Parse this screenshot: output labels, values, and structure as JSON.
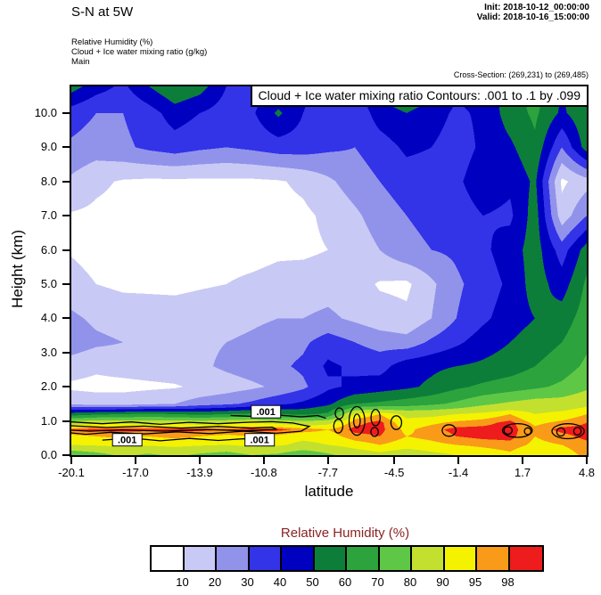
{
  "header": {
    "title": "S-N at 5W",
    "init_line": "Init: 2018-10-12_00:00:00",
    "valid_line": "Valid: 2018-10-16_15:00:00",
    "sub_lines": [
      "Relative Humidity  (%)",
      "Cloud + Ice water mixing ratio  (g/kg)",
      "Main"
    ],
    "cross_section_note": "Cross-Section: (269,231) to (269,485)"
  },
  "plot": {
    "banner": "Cloud + Ice water mixing ratio Contours: .001 to .1 by .099",
    "xlabel": "latitude",
    "ylabel": "Height (km)"
  },
  "legend": {
    "title": "Relative Humidity  (%)",
    "title_color": "#8B2323"
  },
  "chart_data": {
    "type": "heatmap",
    "title": "Cloud + Ice water mixing ratio Contours: .001 to .1 by .099",
    "xlabel": "latitude",
    "ylabel": "Height (km)",
    "x_range": [
      -20.1,
      4.8
    ],
    "y_range": [
      0,
      10.78
    ],
    "x_ticks": [
      {
        "label": "-20.1",
        "value": -20.1
      },
      {
        "label": "-17.0",
        "value": -17.0
      },
      {
        "label": "-13.9",
        "value": -13.9
      },
      {
        "label": "-10.8",
        "value": -10.8
      },
      {
        "label": "-7.7",
        "value": -7.7
      },
      {
        "label": "-4.5",
        "value": -4.5
      },
      {
        "label": "-1.4",
        "value": -1.4
      },
      {
        "label": "1.7",
        "value": 1.7
      },
      {
        "label": "4.8",
        "value": 4.8
      }
    ],
    "y_ticks": [
      {
        "label": "0.0",
        "value": 0
      },
      {
        "label": "1.0",
        "value": 1
      },
      {
        "label": "2.0",
        "value": 2
      },
      {
        "label": "3.0",
        "value": 3
      },
      {
        "label": "4.0",
        "value": 4
      },
      {
        "label": "5.0",
        "value": 5
      },
      {
        "label": "6.0",
        "value": 6
      },
      {
        "label": "7.0",
        "value": 7
      },
      {
        "label": "8.0",
        "value": 8
      },
      {
        "label": "9.0",
        "value": 9
      },
      {
        "label": "10.0",
        "value": 10
      }
    ],
    "palette": {
      "units": "%",
      "thresholds": [
        10,
        20,
        30,
        40,
        50,
        60,
        70,
        80,
        90,
        95,
        98
      ],
      "tick_labels": [
        "10",
        "20",
        "30",
        "40",
        "50",
        "60",
        "70",
        "80",
        "90",
        "95",
        "98"
      ],
      "colors": [
        "#FFFFFF",
        "#C9C9F5",
        "#9193EB",
        "#3333E8",
        "#0000C0",
        "#0C7E3A",
        "#2CA33C",
        "#5FC746",
        "#C3E02F",
        "#F5F200",
        "#F99B19",
        "#EE1C1C"
      ]
    },
    "grid": {
      "lats": [
        -20.1,
        -18.9,
        -17.6,
        -16.4,
        -15.1,
        -13.9,
        -12.6,
        -11.4,
        -10.1,
        -8.9,
        -7.7,
        -6.4,
        -5.2,
        -3.9,
        -2.7,
        -1.5,
        -0.2,
        1.1,
        2.3,
        3.6,
        4.8
      ],
      "heights": [
        0,
        0.3,
        0.55,
        0.75,
        0.95,
        1.2,
        1.5,
        2.0,
        2.6,
        3.3,
        4.0,
        5.0,
        6.0,
        7.0,
        8.0,
        9.0,
        10.0,
        10.8
      ],
      "rh_values": [
        [
          72,
          76,
          82,
          78,
          82,
          78,
          75,
          80,
          78,
          72,
          78,
          85,
          88,
          85,
          88,
          90,
          92,
          94,
          90,
          93,
          96
        ],
        [
          90,
          91,
          92,
          91,
          92,
          91,
          90,
          92,
          91,
          88,
          90,
          93,
          95,
          93,
          94,
          95,
          96,
          97,
          94,
          95,
          97
        ],
        [
          94,
          95,
          96,
          95,
          96,
          95,
          94,
          95,
          94,
          92,
          93,
          97,
          98,
          95,
          96,
          98,
          99,
          99,
          95,
          97,
          99
        ],
        [
          98,
          99,
          99,
          99,
          99,
          99,
          98,
          99,
          99,
          97,
          95,
          99,
          99,
          94,
          97,
          99,
          99,
          99,
          96,
          99,
          99
        ],
        [
          85,
          88,
          88,
          86,
          88,
          86,
          88,
          90,
          88,
          85,
          88,
          97,
          99,
          92,
          94,
          96,
          97,
          99,
          94,
          96,
          98
        ],
        [
          55,
          58,
          60,
          62,
          60,
          58,
          60,
          62,
          60,
          58,
          62,
          92,
          95,
          88,
          88,
          90,
          92,
          95,
          90,
          92,
          95
        ],
        [
          18,
          16,
          16,
          18,
          20,
          25,
          28,
          32,
          38,
          42,
          48,
          60,
          62,
          65,
          68,
          72,
          78,
          82,
          85,
          85,
          88
        ],
        [
          8,
          7,
          7,
          8,
          9,
          12,
          15,
          18,
          22,
          28,
          38,
          42,
          45,
          48,
          52,
          58,
          62,
          65,
          68,
          72,
          78
        ],
        [
          15,
          12,
          14,
          15,
          16,
          18,
          22,
          25,
          28,
          32,
          42,
          38,
          36,
          46,
          48,
          50,
          52,
          55,
          60,
          65,
          72
        ],
        [
          26,
          22,
          20,
          18,
          17,
          18,
          20,
          22,
          25,
          28,
          35,
          30,
          26,
          24,
          32,
          38,
          45,
          50,
          55,
          60,
          68
        ],
        [
          22,
          18,
          16,
          15,
          14,
          15,
          16,
          18,
          20,
          20,
          22,
          18,
          14,
          12,
          20,
          30,
          38,
          45,
          50,
          55,
          65
        ],
        [
          14,
          10,
          8,
          8,
          8,
          9,
          10,
          12,
          14,
          15,
          16,
          14,
          9,
          8,
          18,
          28,
          35,
          42,
          55,
          45,
          62
        ],
        [
          9,
          6,
          5,
          5,
          5,
          5,
          6,
          6,
          8,
          8,
          10,
          14,
          20,
          28,
          30,
          32,
          38,
          45,
          55,
          35,
          55
        ],
        [
          9,
          8,
          7,
          6,
          6,
          6,
          6,
          6,
          7,
          8,
          12,
          18,
          25,
          30,
          32,
          35,
          40,
          38,
          55,
          14,
          30
        ],
        [
          18,
          12,
          9,
          8,
          8,
          8,
          8,
          8,
          9,
          12,
          18,
          25,
          30,
          35,
          35,
          38,
          46,
          42,
          52,
          8,
          16
        ],
        [
          28,
          25,
          28,
          32,
          35,
          32,
          30,
          32,
          35,
          35,
          32,
          30,
          35,
          42,
          40,
          35,
          42,
          48,
          58,
          30,
          55
        ],
        [
          35,
          30,
          30,
          35,
          45,
          40,
          35,
          38,
          52,
          40,
          35,
          32,
          45,
          50,
          45,
          38,
          42,
          55,
          62,
          48,
          58
        ],
        [
          55,
          45,
          38,
          50,
          60,
          55,
          40,
          35,
          38,
          42,
          38,
          35,
          55,
          62,
          55,
          42,
          45,
          55,
          65,
          50,
          60
        ]
      ]
    },
    "cloud_contours": {
      "levels": [
        0.001,
        0.1
      ],
      "polylines": [
        {
          "level": 0.001,
          "pts": [
            [
              -20.1,
              0.97
            ],
            [
              -18.6,
              0.92
            ],
            [
              -17.2,
              0.97
            ],
            [
              -15.8,
              0.9
            ],
            [
              -14.4,
              0.96
            ],
            [
              -13.0,
              0.92
            ],
            [
              -11.6,
              0.96
            ],
            [
              -10.4,
              0.98
            ],
            [
              -9.4,
              0.94
            ],
            [
              -8.6,
              0.84
            ],
            [
              -9.0,
              0.7
            ],
            [
              -10.2,
              0.64
            ],
            [
              -11.8,
              0.7
            ],
            [
              -13.4,
              0.63
            ],
            [
              -15.0,
              0.68
            ],
            [
              -16.6,
              0.62
            ],
            [
              -18.2,
              0.67
            ],
            [
              -19.4,
              0.61
            ],
            [
              -20.1,
              0.65
            ]
          ]
        },
        {
          "level": 0.1,
          "pts": [
            [
              -20.1,
              0.86
            ],
            [
              -18.4,
              0.81
            ],
            [
              -16.6,
              0.85
            ],
            [
              -14.8,
              0.79
            ],
            [
              -13.0,
              0.84
            ],
            [
              -11.4,
              0.79
            ],
            [
              -10.4,
              0.82
            ],
            [
              -10.2,
              0.76
            ],
            [
              -11.6,
              0.71
            ],
            [
              -13.6,
              0.75
            ],
            [
              -15.6,
              0.7
            ],
            [
              -17.6,
              0.74
            ],
            [
              -19.2,
              0.7
            ],
            [
              -20.1,
              0.73
            ]
          ]
        },
        {
          "level": 0.001,
          "pts": [
            [
              -12.4,
              1.16
            ],
            [
              -11.2,
              1.13
            ],
            [
              -10.0,
              1.17
            ],
            [
              -9.0,
              1.12
            ],
            [
              -8.2,
              1.16
            ],
            [
              -7.8,
              1.08
            ]
          ]
        },
        {
          "level": 0.001,
          "pts": [
            [
              -18.6,
              0.44
            ],
            [
              -17.2,
              0.5
            ],
            [
              -15.8,
              0.42
            ],
            [
              -14.4,
              0.49
            ],
            [
              -13.0,
              0.43
            ],
            [
              -11.8,
              0.48
            ],
            [
              -10.6,
              0.44
            ]
          ]
        }
      ],
      "ellipses": [
        {
          "cx": -7.15,
          "cy": 1.22,
          "rx": 0.2,
          "ry": 0.16
        },
        {
          "cx": -7.2,
          "cy": 0.85,
          "rx": 0.22,
          "ry": 0.2
        },
        {
          "cx": -6.3,
          "cy": 1.0,
          "rx": 0.38,
          "ry": 0.42
        },
        {
          "cx": -6.3,
          "cy": 1.0,
          "rx": 0.16,
          "ry": 0.2
        },
        {
          "cx": -5.4,
          "cy": 1.1,
          "rx": 0.22,
          "ry": 0.24
        },
        {
          "cx": -5.45,
          "cy": 0.68,
          "rx": 0.18,
          "ry": 0.13
        },
        {
          "cx": -4.4,
          "cy": 0.95,
          "rx": 0.26,
          "ry": 0.2
        },
        {
          "cx": -1.85,
          "cy": 0.72,
          "rx": 0.33,
          "ry": 0.17
        },
        {
          "cx": 1.45,
          "cy": 0.72,
          "rx": 0.72,
          "ry": 0.2
        },
        {
          "cx": 1.0,
          "cy": 0.72,
          "rx": 0.2,
          "ry": 0.11
        },
        {
          "cx": 1.95,
          "cy": 0.7,
          "rx": 0.16,
          "ry": 0.1
        },
        {
          "cx": 3.9,
          "cy": 0.7,
          "rx": 0.78,
          "ry": 0.22
        },
        {
          "cx": 3.55,
          "cy": 0.68,
          "rx": 0.2,
          "ry": 0.12
        },
        {
          "cx": 4.35,
          "cy": 0.7,
          "rx": 0.18,
          "ry": 0.11
        }
      ],
      "labels": [
        {
          "text": ".001",
          "lat": -17.4,
          "h": 0.45
        },
        {
          "text": ".001",
          "lat": -10.7,
          "h": 1.27
        },
        {
          "text": ".001",
          "lat": -11.0,
          "h": 0.45
        }
      ]
    }
  }
}
